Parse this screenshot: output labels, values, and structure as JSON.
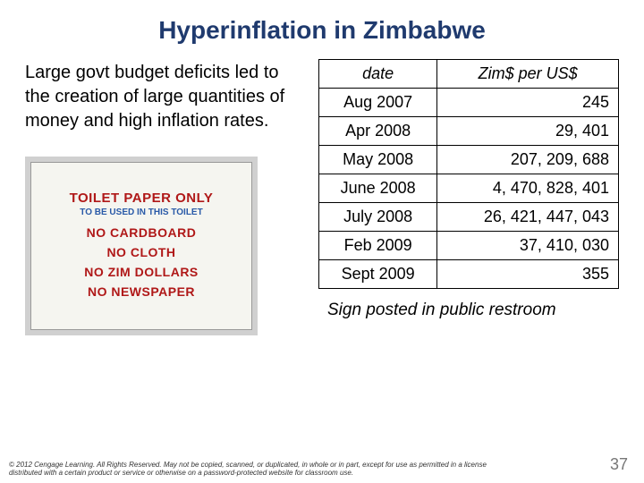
{
  "title": "Hyperinflation in Zimbabwe",
  "leftText": "Large govt budget deficits led to the creation of large quantities of money and high inflation rates.",
  "sign": {
    "line1": "TOILET PAPER ONLY",
    "line2": "TO BE USED IN THIS TOILET",
    "no1": "NO CARDBOARD",
    "no2": "NO CLOTH",
    "no3": "NO ZIM DOLLARS",
    "no4": "NO NEWSPAPER"
  },
  "table": {
    "headers": {
      "date": "date",
      "value": "Zim$ per US$"
    },
    "rows": [
      {
        "date": "Aug 2007",
        "value": "245"
      },
      {
        "date": "Apr 2008",
        "value": "29, 401"
      },
      {
        "date": "May 2008",
        "value": "207, 209, 688"
      },
      {
        "date": "June 2008",
        "value": "4, 470, 828, 401"
      },
      {
        "date": "July 2008",
        "value": "26, 421, 447, 043"
      },
      {
        "date": "Feb 2009",
        "value": "37, 410, 030"
      },
      {
        "date": "Sept 2009",
        "value": "355"
      }
    ]
  },
  "caption": "Sign posted in public restroom",
  "copyright": "© 2012 Cengage Learning. All Rights Reserved. May not be copied, scanned, or duplicated, in whole or in part, except for use as permitted in a license distributed with a certain product or service or otherwise on a password-protected website for classroom use.",
  "pageNum": "37",
  "colors": {
    "titleColor": "#1f3a6e",
    "signRed": "#b01818",
    "signBlue": "#2a5aa8"
  }
}
